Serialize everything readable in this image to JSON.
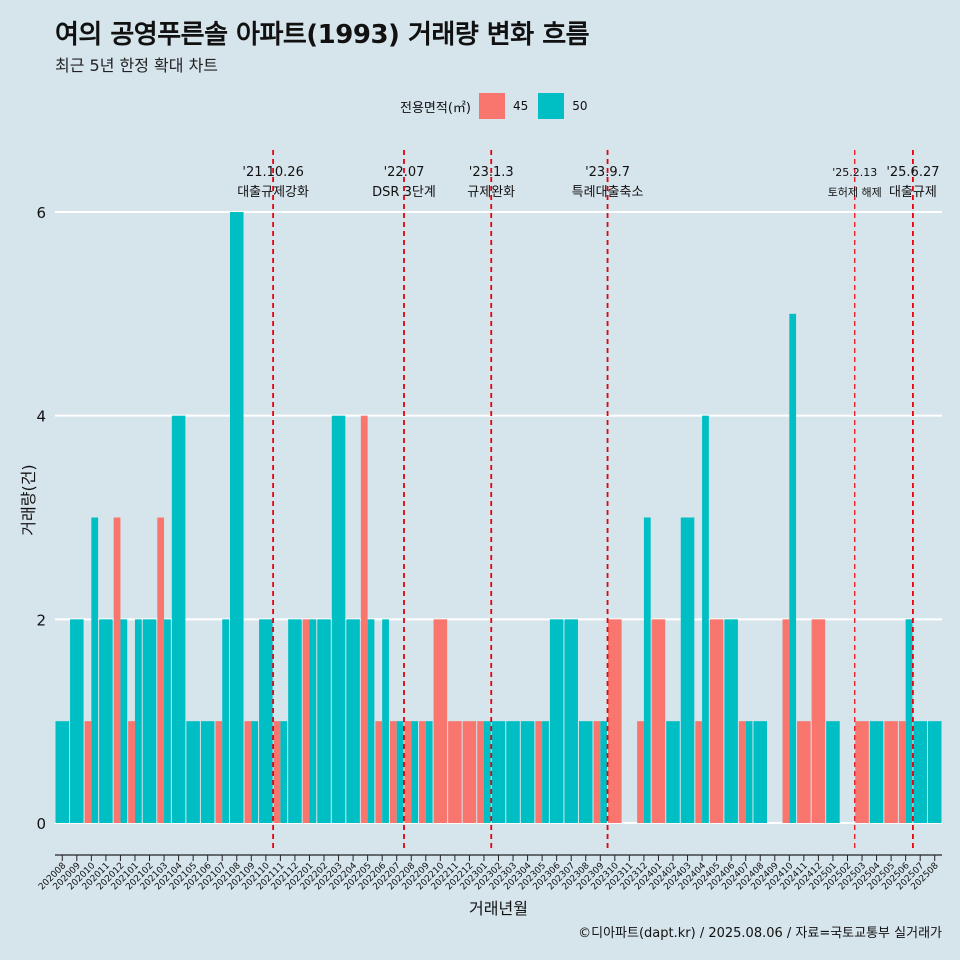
{
  "title": "여의 공영푸른솔 아파트(1993) 거래량 변화 흐름",
  "subtitle": "최근 5년 한정 확대 차트",
  "legend": {
    "title": "전용면적(㎡)",
    "items": [
      {
        "label": "45",
        "color": "#f8766d"
      },
      {
        "label": "50",
        "color": "#00bfc4"
      }
    ]
  },
  "caption": "©디아파트(dapt.kr) / 2025.08.06 / 자료=국토교통부 실거래가",
  "chart_data": {
    "type": "bar",
    "stacked": false,
    "xlabel": "거래년월",
    "ylabel": "거래량(건)",
    "ylim": [
      0,
      6
    ],
    "yticks": [
      0,
      2,
      4,
      6
    ],
    "categories": [
      "202008",
      "202009",
      "202010",
      "202011",
      "202012",
      "202101",
      "202102",
      "202103",
      "202104",
      "202105",
      "202106",
      "202107",
      "202108",
      "202109",
      "202110",
      "202111",
      "202112",
      "202201",
      "202202",
      "202203",
      "202204",
      "202205",
      "202206",
      "202207",
      "202208",
      "202209",
      "202210",
      "202211",
      "202212",
      "202301",
      "202302",
      "202303",
      "202304",
      "202305",
      "202306",
      "202307",
      "202308",
      "202309",
      "202310",
      "202311",
      "202312",
      "202401",
      "202402",
      "202403",
      "202404",
      "202405",
      "202406",
      "202407",
      "202408",
      "202409",
      "202410",
      "202411",
      "202412",
      "202501",
      "202502",
      "202503",
      "202504",
      "202505",
      "202506",
      "202507",
      "202508"
    ],
    "series": [
      {
        "name": "45",
        "color": "#f8766d",
        "values": [
          0,
          0,
          1,
          0,
          3,
          1,
          0,
          3,
          0,
          0,
          0,
          1,
          0,
          1,
          0,
          1,
          0,
          2,
          0,
          0,
          0,
          4,
          1,
          1,
          1,
          1,
          2,
          1,
          1,
          1,
          0,
          0,
          0,
          1,
          0,
          0,
          0,
          1,
          2,
          0,
          1,
          2,
          0,
          0,
          1,
          2,
          0,
          1,
          0,
          0,
          2,
          1,
          2,
          0,
          0,
          1,
          0,
          1,
          1,
          0,
          0
        ]
      },
      {
        "name": "50",
        "color": "#00bfc4",
        "values": [
          1,
          2,
          3,
          2,
          2,
          2,
          2,
          2,
          4,
          1,
          1,
          2,
          6,
          1,
          2,
          1,
          2,
          2,
          2,
          4,
          2,
          2,
          2,
          1,
          1,
          1,
          0,
          0,
          0,
          1,
          1,
          1,
          1,
          1,
          2,
          2,
          1,
          1,
          0,
          0,
          3,
          0,
          1,
          3,
          4,
          0,
          2,
          1,
          1,
          0,
          5,
          0,
          0,
          1,
          0,
          0,
          1,
          0,
          2,
          1,
          1
        ]
      }
    ],
    "events": [
      {
        "date": "'21.10.26",
        "label": "대출규제강화",
        "after": "202110"
      },
      {
        "date": "'22.07",
        "label": "DSR 3단계",
        "after": "202207"
      },
      {
        "date": "'23.1.3",
        "label": "규제완화",
        "after": "202301"
      },
      {
        "date": "'23.9.7",
        "label": "특례대출축소",
        "after": "202309"
      },
      {
        "date": "'25.2.13",
        "label": "토허제 해제",
        "after": "202502"
      },
      {
        "date": "'25.6.27",
        "label": "대출규제",
        "after": "202506"
      }
    ]
  }
}
